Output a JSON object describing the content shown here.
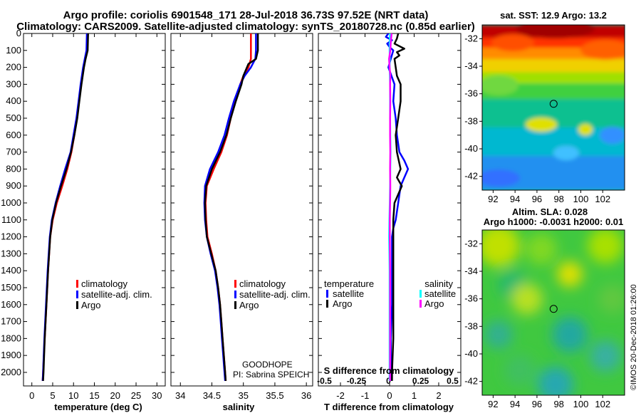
{
  "header": {
    "line1": "Argo profile: coriolis 6901548_171 28-Jul-2018 36.73S 97.52E (NRT data)",
    "line2": "Climatology: CARS2009. Satellite-adjusted climatology: synTS_20180728.nc (0.85d earlier)"
  },
  "colors": {
    "climatology": "#ff0000",
    "satellite": "#0000ff",
    "argo": "#000000",
    "s_satellite": "#00ffff",
    "s_argo": "#ff00ff"
  },
  "chart_data": [
    {
      "type": "line",
      "name": "temperature",
      "xlabel": "temperature (deg C)",
      "ylabel": "",
      "xlim": [
        -2,
        32
      ],
      "ylim": [
        2080,
        0
      ],
      "xticks": [
        0,
        5,
        10,
        15,
        20,
        25,
        30
      ],
      "yticks": [
        0,
        100,
        200,
        300,
        400,
        500,
        600,
        700,
        800,
        900,
        1000,
        1100,
        1200,
        1300,
        1400,
        1500,
        1600,
        1700,
        1800,
        1900,
        2000
      ],
      "series": [
        {
          "name": "climatology",
          "color": "#ff0000",
          "depth": [
            0,
            100,
            150,
            200,
            300,
            400,
            500,
            600,
            700,
            800,
            900,
            1000,
            1100,
            1200,
            1400,
            1600,
            1800,
            2000,
            2050
          ],
          "values": [
            13.3,
            13.2,
            12.8,
            12.4,
            11.8,
            11.3,
            10.8,
            10.2,
            9.5,
            8.5,
            7.3,
            6.0,
            5.0,
            4.4,
            3.9,
            3.5,
            3.1,
            2.7,
            2.6
          ]
        },
        {
          "name": "satellite-adj. clim.",
          "color": "#0000ff",
          "depth": [
            0,
            100,
            150,
            200,
            300,
            400,
            500,
            600,
            700,
            800,
            900,
            1000,
            1100,
            1200,
            1400,
            1600,
            1800,
            2000,
            2050
          ],
          "values": [
            13.2,
            13.1,
            12.7,
            12.3,
            11.7,
            11.2,
            10.7,
            10.0,
            9.3,
            8.0,
            6.8,
            5.7,
            4.8,
            4.3,
            3.8,
            3.4,
            3.0,
            2.7,
            2.6
          ]
        },
        {
          "name": "Argo",
          "color": "#000000",
          "depth": [
            0,
            100,
            150,
            200,
            300,
            400,
            500,
            600,
            700,
            800,
            900,
            1000,
            1100,
            1200,
            1400,
            1600,
            1800,
            2000,
            2050
          ],
          "values": [
            13.5,
            13.4,
            12.9,
            12.5,
            11.9,
            11.4,
            10.9,
            10.2,
            9.4,
            8.3,
            7.0,
            5.8,
            4.9,
            4.4,
            3.9,
            3.5,
            3.1,
            2.8,
            2.7
          ]
        }
      ],
      "legend": [
        "climatology",
        "satellite-adj. clim.",
        "Argo"
      ]
    },
    {
      "type": "line",
      "name": "salinity",
      "xlabel": "salinity",
      "xlim": [
        33.85,
        36.1
      ],
      "ylim": [
        2080,
        0
      ],
      "xticks": [
        34,
        34.5,
        35,
        35.5,
        36
      ],
      "series": [
        {
          "name": "climatology",
          "color": "#ff0000",
          "depth": [
            0,
            100,
            150,
            200,
            250,
            300,
            400,
            500,
            600,
            700,
            800,
            900,
            1000,
            1100,
            1200,
            1300,
            1400,
            1500,
            1600,
            1700,
            1800,
            1900,
            2000,
            2050
          ],
          "values": [
            35.12,
            35.12,
            35.12,
            35.08,
            35.0,
            34.95,
            34.87,
            34.8,
            34.74,
            34.65,
            34.53,
            34.42,
            34.4,
            34.41,
            34.43,
            34.5,
            34.56,
            34.6,
            34.63,
            34.65,
            34.67,
            34.69,
            34.71,
            34.72
          ]
        },
        {
          "name": "satellite-adj. clim.",
          "color": "#0000ff",
          "depth": [
            0,
            100,
            150,
            200,
            250,
            300,
            400,
            500,
            600,
            700,
            800,
            900,
            1000,
            1100,
            1200,
            1300,
            1400,
            1500,
            1600,
            1700,
            1800,
            1900,
            2000,
            2050
          ],
          "values": [
            35.2,
            35.2,
            35.19,
            35.12,
            35.02,
            34.95,
            34.85,
            34.77,
            34.7,
            34.6,
            34.47,
            34.39,
            34.38,
            34.39,
            34.42,
            34.48,
            34.55,
            34.59,
            34.62,
            34.64,
            34.66,
            34.68,
            34.7,
            34.71
          ]
        },
        {
          "name": "Argo",
          "color": "#000000",
          "depth": [
            0,
            100,
            150,
            180,
            250,
            300,
            400,
            500,
            600,
            700,
            800,
            900,
            1000,
            1100,
            1200,
            1300,
            1400,
            1500,
            1600,
            1700,
            1800,
            1900,
            2000,
            2050
          ],
          "values": [
            35.23,
            35.23,
            35.2,
            35.08,
            35.0,
            34.97,
            34.88,
            34.8,
            34.73,
            34.63,
            34.5,
            34.41,
            34.39,
            34.4,
            34.42,
            34.49,
            34.56,
            34.6,
            34.63,
            34.65,
            34.67,
            34.69,
            34.71,
            34.72
          ]
        }
      ],
      "legend": [
        "climatology",
        "satellite-adj. clim.",
        "Argo"
      ],
      "annotation": [
        "GOODHOPE",
        "PI: Sabrina SPEICH"
      ]
    },
    {
      "type": "line",
      "name": "difference",
      "xlabel": "T difference from climatology",
      "top_label": "S difference from climatology",
      "xlim": [
        -2.9,
        2.9
      ],
      "ylim": [
        2080,
        0
      ],
      "xticks": [
        -2,
        -1,
        0,
        1,
        2
      ],
      "sticks": [
        "-0.5",
        "-0.25",
        "0",
        "0.25",
        "0.5"
      ],
      "series": [
        {
          "name": "temperature satellite",
          "color": "#0000ff",
          "depth": [
            0,
            20,
            40,
            60,
            80,
            100,
            150,
            200,
            300,
            400,
            500,
            600,
            700,
            750,
            800,
            850,
            900,
            1000,
            1100,
            1150,
            1200,
            1400,
            1600,
            1800,
            2000,
            2050
          ],
          "values": [
            -0.05,
            -0.15,
            0.1,
            -0.1,
            0.0,
            0.15,
            0.05,
            -0.05,
            0.2,
            0.15,
            0.25,
            0.3,
            0.4,
            0.6,
            0.75,
            0.6,
            0.45,
            0.35,
            0.25,
            0.15,
            0.1,
            0.1,
            0.1,
            0.05,
            0.05,
            0.05
          ]
        },
        {
          "name": "temperature Argo",
          "color": "#000000",
          "depth": [
            0,
            30,
            60,
            90,
            110,
            130,
            150,
            200,
            250,
            300,
            400,
            500,
            600,
            700,
            800,
            850,
            900,
            1000,
            1100,
            1200,
            1400,
            1600,
            1800,
            2000,
            2050
          ],
          "values": [
            0.35,
            0.3,
            0.2,
            0.6,
            0.3,
            0.4,
            0.2,
            0.25,
            0.3,
            0.45,
            0.45,
            0.35,
            0.25,
            0.3,
            0.45,
            0.3,
            0.5,
            0.2,
            0.15,
            0.15,
            0.15,
            0.15,
            0.15,
            0.1,
            0.1
          ]
        },
        {
          "name": "salinity satellite",
          "color": "#00ffff",
          "depth": [
            0,
            50,
            100,
            150,
            200,
            300,
            400,
            500,
            600,
            700,
            800,
            900,
            1000,
            1100,
            1200,
            1300,
            1400,
            1600,
            1800,
            2000,
            2050
          ],
          "values": [
            0.02,
            0.01,
            0.0,
            0.01,
            0.0,
            0.02,
            0.02,
            0.02,
            0.03,
            0.04,
            0.03,
            0.02,
            0.01,
            -0.01,
            -0.02,
            -0.01,
            0.0,
            0.0,
            0.0,
            0.0,
            0.0
          ]
        },
        {
          "name": "salinity Argo",
          "color": "#ff00ff",
          "depth": [
            0,
            50,
            100,
            150,
            200,
            250,
            300,
            400,
            500,
            600,
            700,
            800,
            900,
            1000,
            1100,
            1200,
            1400,
            1600,
            1800,
            2000,
            2050
          ],
          "values": [
            0.08,
            0.05,
            0.03,
            -0.02,
            0.0,
            0.03,
            0.02,
            0.03,
            0.02,
            0.02,
            0.03,
            0.02,
            0.03,
            0.02,
            0.01,
            0.01,
            0.02,
            0.02,
            0.02,
            0.02,
            0.02
          ]
        }
      ],
      "legend_temperature": {
        "title": "temperature",
        "items": [
          "satellite",
          "Argo"
        ]
      },
      "legend_salinity": {
        "title": "salinity",
        "items": [
          "satellite",
          "Argo"
        ]
      }
    },
    {
      "type": "heatmap",
      "name": "sst-map",
      "title": "sat. SST: 12.9 Argo: 13.2",
      "xlim": [
        91,
        104
      ],
      "ylim": [
        -43,
        -31
      ],
      "xticks": [
        92,
        94,
        96,
        98,
        100,
        102
      ],
      "yticks": [
        -32,
        -34,
        -36,
        -38,
        -40,
        -42
      ],
      "marker": {
        "lon": 97.52,
        "lat": -36.73
      }
    },
    {
      "type": "heatmap",
      "name": "sla-map",
      "title": "Altim. SLA: 0.028",
      "subtitle": "Argo h1000: -0.0031 h2000: 0.01",
      "xlim": [
        91,
        104
      ],
      "ylim": [
        -43,
        -31
      ],
      "xticks": [
        92,
        94,
        96,
        98,
        100,
        102
      ],
      "yticks": [
        -32,
        -34,
        -36,
        -38,
        -40,
        -42
      ],
      "marker": {
        "lon": 97.52,
        "lat": -36.73
      }
    }
  ],
  "credit": "©IMOS 20-Dec-2018 01:26:00"
}
